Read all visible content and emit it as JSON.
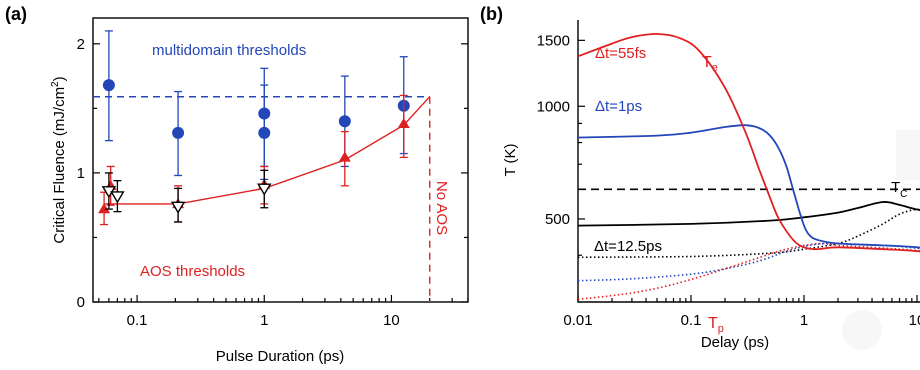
{
  "chart_data": [
    {
      "panel_label": "(a)",
      "type": "scatter",
      "xlabel": "Pulse Duration (ps)",
      "ylabel": "Critical Fluence (mJ/cm",
      "ylabel_sup": "2",
      "ylabel_close": ")",
      "x_scale": "log",
      "xlim": [
        0.045,
        40
      ],
      "ylim": [
        0,
        2.2
      ],
      "x_ticks": [
        {
          "v": 0.1,
          "label": "0.1"
        },
        {
          "v": 1,
          "label": "1"
        },
        {
          "v": 10,
          "label": "10"
        }
      ],
      "y_ticks": [
        {
          "v": 0,
          "label": "0"
        },
        {
          "v": 1,
          "label": "1"
        },
        {
          "v": 2,
          "label": "2"
        }
      ],
      "grid": false,
      "annotations": [
        {
          "text": "multidomain thresholds",
          "color": "#2347b8"
        },
        {
          "text": "AOS thresholds",
          "color": "#e02020"
        },
        {
          "text": "No AOS",
          "color": "#e02020"
        }
      ],
      "series": [
        {
          "kind": "multidomain",
          "color": "#2347b8",
          "points": [
            {
              "x": 0.06,
              "y": 1.68,
              "lo": 1.25,
              "hi": 2.1
            },
            {
              "x": 0.21,
              "y": 1.31,
              "lo": 0.98,
              "hi": 1.63
            },
            {
              "x": 1.0,
              "y": 1.46,
              "lo": 1.05,
              "hi": 1.81
            },
            {
              "x": 1.0,
              "y": 1.31,
              "lo": 0.95,
              "hi": 1.68
            },
            {
              "x": 4.3,
              "y": 1.4,
              "lo": 1.05,
              "hi": 1.75
            },
            {
              "x": 12.5,
              "y": 1.52,
              "lo": 1.15,
              "hi": 1.9
            }
          ]
        },
        {
          "kind": "multidomain_level",
          "color": "#2347b8",
          "y": 1.59,
          "x_from": 0.045,
          "x_to": 20
        },
        {
          "kind": "aos_up_triangles",
          "color": "#e02020",
          "points": [
            {
              "x": 0.055,
              "y": 0.72,
              "lo": 0.6,
              "hi": 0.85
            },
            {
              "x": 0.062,
              "y": 0.9,
              "lo": 0.75,
              "hi": 1.05
            },
            {
              "x": 0.21,
              "y": 0.76,
              "lo": 0.62,
              "hi": 0.9
            },
            {
              "x": 1.0,
              "y": 0.91,
              "lo": 0.76,
              "hi": 1.05
            },
            {
              "x": 4.3,
              "y": 1.12,
              "lo": 0.9,
              "hi": 1.32
            },
            {
              "x": 12.5,
              "y": 1.38,
              "lo": 1.12,
              "hi": 1.6
            }
          ]
        },
        {
          "kind": "aos_down_triangles",
          "color": "#000000",
          "points": [
            {
              "x": 0.06,
              "y": 0.86,
              "lo": 0.72,
              "hi": 1.0
            },
            {
              "x": 0.07,
              "y": 0.82,
              "lo": 0.7,
              "hi": 0.94
            },
            {
              "x": 0.21,
              "y": 0.74,
              "lo": 0.62,
              "hi": 0.88
            },
            {
              "x": 1.0,
              "y": 0.88,
              "lo": 0.73,
              "hi": 1.02
            }
          ]
        },
        {
          "kind": "aos_fit_line",
          "color": "#e02020",
          "x": [
            0.055,
            0.21,
            1.0,
            4.3,
            12.5,
            20
          ],
          "y": [
            0.76,
            0.76,
            0.88,
            1.1,
            1.37,
            1.59
          ]
        },
        {
          "kind": "no_aos_boundary",
          "color": "#e02020",
          "x": 20
        }
      ]
    },
    {
      "panel_label": "(b)",
      "type": "line",
      "xlabel": "Delay (ps)",
      "ylabel": "T (K)",
      "x_scale": "log",
      "y_scale": "log",
      "xlim": [
        0.01,
        100
      ],
      "ylim": [
        300,
        1700
      ],
      "x_ticks": [
        {
          "v": 0.01,
          "label": "0.01"
        },
        {
          "v": 0.1,
          "label": "0.1"
        },
        {
          "v": 1,
          "label": "1"
        },
        {
          "v": 10,
          "label": "10"
        }
      ],
      "y_ticks": [
        {
          "v": 500,
          "label": "500"
        },
        {
          "v": 1000,
          "label": "1000"
        },
        {
          "v": 1500,
          "label": "1500"
        }
      ],
      "grid": false,
      "tc_value": 600,
      "tc_label": "T",
      "tc_sub": "C",
      "annotations": [
        {
          "text": "Δt=55fs",
          "color": "#e02020"
        },
        {
          "text": "Δt=1ps",
          "color": "#2347b8"
        },
        {
          "text": "Δt=12.5ps",
          "color": "#000000"
        }
      ],
      "curve_labels": [
        {
          "text": "T",
          "sub": "e",
          "color": "#e02020"
        },
        {
          "text": "T",
          "sub": "p",
          "color": "#e02020"
        }
      ],
      "series": [
        {
          "kind": "Te",
          "color": "#e02020",
          "style": "solid",
          "x": [
            0.01,
            0.02,
            0.03,
            0.05,
            0.08,
            0.12,
            0.2,
            0.3,
            0.4,
            0.5,
            0.6,
            0.8,
            1.0,
            1.3,
            2,
            5,
            10,
            50
          ],
          "y": [
            1360,
            1470,
            1530,
            1560,
            1520,
            1400,
            1120,
            860,
            680,
            570,
            500,
            440,
            420,
            415,
            420,
            415,
            410,
            390
          ]
        },
        {
          "kind": "Te",
          "color": "#2347b8",
          "style": "solid",
          "x": [
            0.01,
            0.05,
            0.1,
            0.2,
            0.3,
            0.4,
            0.5,
            0.6,
            0.7,
            0.8,
            0.9,
            1.0,
            1.1,
            1.3,
            2,
            5,
            10,
            50
          ],
          "y": [
            825,
            835,
            850,
            880,
            890,
            875,
            835,
            770,
            690,
            600,
            530,
            480,
            455,
            440,
            430,
            425,
            420,
            400
          ]
        },
        {
          "kind": "Te",
          "color": "#000000",
          "style": "solid",
          "x": [
            0.01,
            0.1,
            0.5,
            1,
            2,
            3,
            5,
            7,
            10,
            15,
            20,
            50
          ],
          "y": [
            480,
            485,
            495,
            505,
            520,
            535,
            555,
            545,
            530,
            520,
            515,
            500
          ]
        },
        {
          "kind": "Tp",
          "color": "#e02020",
          "style": "dotted",
          "x": [
            0.01,
            0.02,
            0.04,
            0.08,
            0.15,
            0.3,
            0.6,
            1.0,
            1.5,
            2,
            5,
            10,
            50
          ],
          "y": [
            305,
            312,
            322,
            338,
            358,
            383,
            410,
            425,
            430,
            425,
            418,
            412,
            395
          ]
        },
        {
          "kind": "Tp",
          "color": "#2347b8",
          "style": "dotted",
          "x": [
            0.01,
            0.03,
            0.1,
            0.2,
            0.4,
            0.7,
            1.0,
            1.5,
            2,
            5,
            10,
            50
          ],
          "y": [
            342,
            346,
            356,
            368,
            386,
            410,
            422,
            430,
            430,
            425,
            418,
            400
          ]
        },
        {
          "kind": "Tp",
          "color": "#000000",
          "style": "dotted",
          "x": [
            0.01,
            0.1,
            0.5,
            1,
            2,
            3,
            5,
            7,
            10,
            15,
            20,
            50
          ],
          "y": [
            395,
            397,
            405,
            415,
            430,
            450,
            485,
            515,
            530,
            525,
            520,
            500
          ]
        }
      ]
    }
  ]
}
